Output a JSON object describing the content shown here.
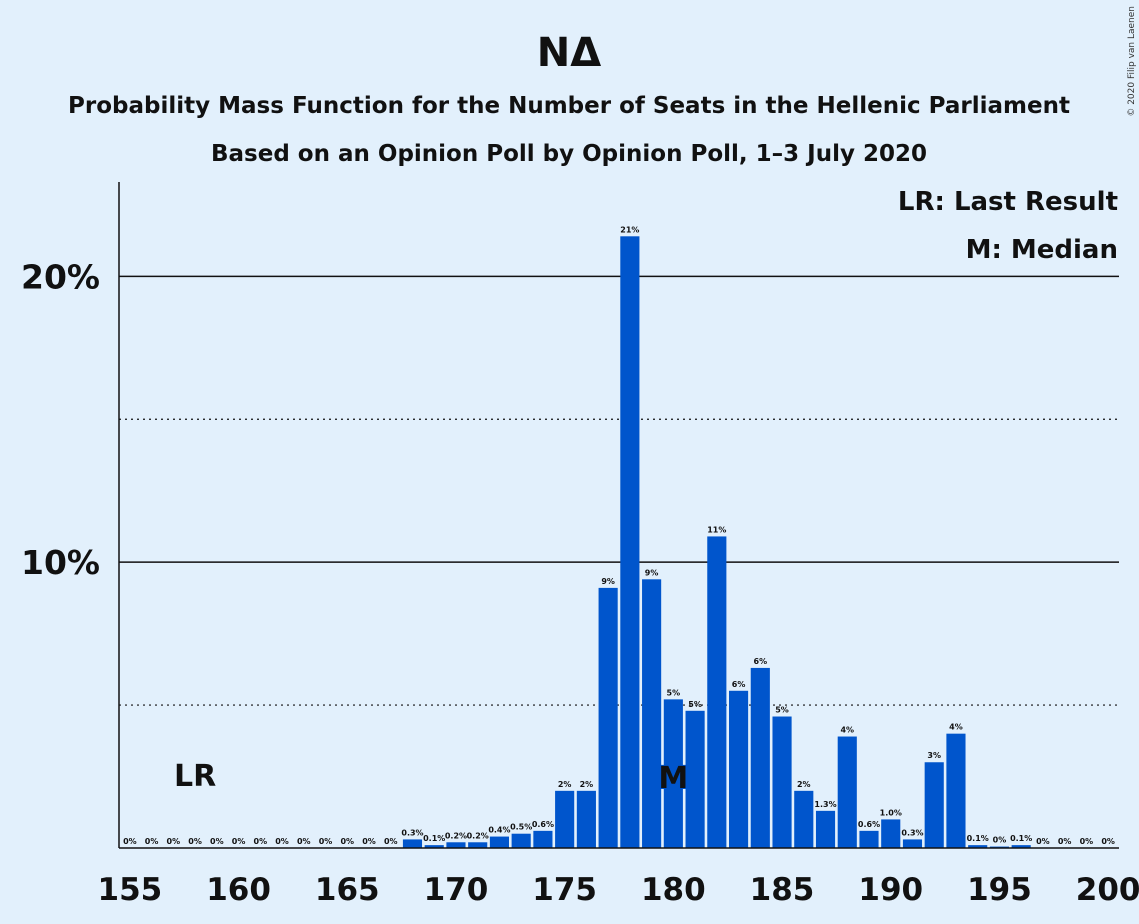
{
  "chart_data": {
    "type": "bar",
    "title": "ΝΔ",
    "subtitle_line1": "Probability Mass Function for the Number of Seats in the Hellenic Parliament",
    "subtitle_line2": "Based on an Opinion Poll by Opinion Poll, 1–3 July 2020",
    "copyright": "© 2020 Filip van Laenen",
    "legend": [
      "LR: Last Result",
      "M: Median"
    ],
    "last_result_marker": "LR",
    "last_result_seat": 158,
    "median_marker": "M",
    "median_seat": 180,
    "x_tick_values": [
      155,
      160,
      165,
      170,
      175,
      180,
      185,
      190,
      195,
      200
    ],
    "x_tick_labels": [
      "155",
      "160",
      "165",
      "170",
      "175",
      "180",
      "185",
      "190",
      "195",
      "200"
    ],
    "y_tick_values": [
      10,
      20
    ],
    "y_tick_labels": [
      "10%",
      "20%"
    ],
    "y_minor_gridlines": [
      5,
      15
    ],
    "xlim": [
      154.5,
      200.5
    ],
    "ylim": [
      0,
      23.3
    ],
    "bar_color": "#0055cc",
    "background_color": "#e2f0fc",
    "seats": [
      155,
      156,
      157,
      158,
      159,
      160,
      161,
      162,
      163,
      164,
      165,
      166,
      167,
      168,
      169,
      170,
      171,
      172,
      173,
      174,
      175,
      176,
      177,
      178,
      179,
      180,
      181,
      182,
      183,
      184,
      185,
      186,
      187,
      188,
      189,
      190,
      191,
      192,
      193,
      194,
      195,
      196,
      197,
      198,
      199,
      200
    ],
    "values": [
      0,
      0,
      0,
      0,
      0,
      0,
      0,
      0,
      0,
      0,
      0,
      0,
      0,
      0.3,
      0.1,
      0.2,
      0.2,
      0.4,
      0.5,
      0.6,
      2.0,
      2.0,
      9.1,
      21.4,
      9.4,
      5.2,
      4.8,
      10.9,
      5.5,
      6.3,
      4.6,
      2.0,
      1.3,
      3.9,
      0.6,
      1.0,
      0.3,
      3.0,
      4.0,
      0.1,
      0.05,
      0.1,
      0,
      0,
      0,
      0
    ],
    "labels": [
      "0%",
      "0%",
      "0%",
      "0%",
      "0%",
      "0%",
      "0%",
      "0%",
      "0%",
      "0%",
      "0%",
      "0%",
      "0%",
      "0.3%",
      "0.1%",
      "0.2%",
      "0.2%",
      "0.4%",
      "0.5%",
      "0.6%",
      "2%",
      "2%",
      "9%",
      "21%",
      "9%",
      "5%",
      "5%",
      "11%",
      "6%",
      "6%",
      "5%",
      "2%",
      "1.3%",
      "4%",
      "0.6%",
      "1.0%",
      "0.3%",
      "3%",
      "4%",
      "0.1%",
      "0%",
      "0.1%",
      "0%",
      "0%",
      "0%",
      "0%"
    ]
  }
}
